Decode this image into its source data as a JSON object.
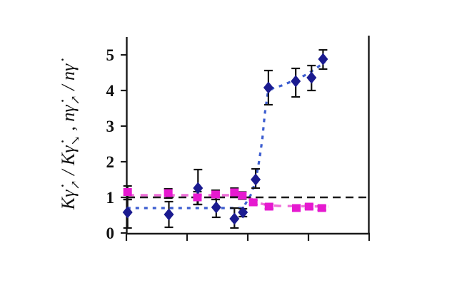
{
  "figure": {
    "background": "#ffffff",
    "axis_color": "#1a1a1a"
  },
  "chart_data": {
    "type": "scatter",
    "title": "",
    "xlabel": "",
    "ylabel": "Kγ̇↗ / Kγ̇↘ ,  nγ̇↗ / nγ̇",
    "ylabel_parts": [
      {
        "t": "K"
      },
      {
        "t": "γ̇"
      },
      {
        "t": "↗",
        "sub": true
      },
      {
        "t": " / "
      },
      {
        "t": "K"
      },
      {
        "t": "γ̇"
      },
      {
        "t": "↘",
        "sub": true
      },
      {
        "t": " ,  "
      },
      {
        "t": "n"
      },
      {
        "t": "γ̇"
      },
      {
        "t": "↗",
        "sub": true
      },
      {
        "t": " / "
      },
      {
        "t": "n"
      },
      {
        "t": "γ̇"
      }
    ],
    "x_axis": {
      "min": 0,
      "max": 4,
      "ticks": [
        0,
        1,
        2,
        3,
        4
      ],
      "tick_labels": [],
      "labels_visible": false
    },
    "y_axis": {
      "min": 0,
      "max": 5.5,
      "ticks": [
        0,
        1,
        2,
        3,
        4,
        5
      ],
      "tick_labels": [
        "0",
        "1",
        "2",
        "3",
        "4",
        "5"
      ]
    },
    "reference_line": {
      "y": 1.0,
      "color": "#1a1a1a",
      "style": "dashed"
    },
    "grid": false,
    "legend": "none",
    "series": [
      {
        "name": "diamond-series",
        "marker": "diamond",
        "color": "#1b1b90",
        "points": [
          {
            "x": 0.02,
            "y": 0.58,
            "lo": 0.14,
            "hi": 0.94
          },
          {
            "x": 0.7,
            "y": 0.52,
            "lo": 0.16,
            "hi": 0.88
          },
          {
            "x": 1.18,
            "y": 1.26,
            "lo": 0.8,
            "hi": 1.78
          },
          {
            "x": 1.48,
            "y": 0.72,
            "lo": 0.44,
            "hi": 1.0
          },
          {
            "x": 1.78,
            "y": 0.4,
            "lo": 0.14,
            "hi": 0.7
          },
          {
            "x": 1.92,
            "y": 0.58,
            "lo": 0.46,
            "hi": 0.68
          },
          {
            "x": 2.13,
            "y": 1.5,
            "lo": 1.26,
            "hi": 1.8
          },
          {
            "x": 2.34,
            "y": 4.08,
            "lo": 3.6,
            "hi": 4.56
          },
          {
            "x": 2.79,
            "y": 4.26,
            "lo": 3.82,
            "hi": 4.62
          },
          {
            "x": 3.05,
            "y": 4.36,
            "lo": 4.0,
            "hi": 4.7
          },
          {
            "x": 3.24,
            "y": 4.88,
            "lo": 4.6,
            "hi": 5.14
          }
        ],
        "trend": {
          "style": "dotted",
          "color": "#3d5ed0",
          "path": [
            [
              0.01,
              0.7
            ],
            [
              1.92,
              0.7
            ],
            [
              2.06,
              1.1
            ],
            [
              2.13,
              1.48
            ],
            [
              2.19,
              2.04
            ],
            [
              2.24,
              2.64
            ],
            [
              2.28,
              3.34
            ],
            [
              2.33,
              3.94
            ],
            [
              2.41,
              4.06
            ],
            [
              2.56,
              4.14
            ],
            [
              2.79,
              4.3
            ],
            [
              2.98,
              4.46
            ],
            [
              3.14,
              4.64
            ],
            [
              3.27,
              4.8
            ]
          ]
        }
      },
      {
        "name": "square-series",
        "marker": "square",
        "color": "#e619d0",
        "points": [
          {
            "x": 0.02,
            "y": 1.15,
            "lo": 0.94,
            "hi": 1.32
          },
          {
            "x": 0.69,
            "y": 1.12,
            "lo": 0.98,
            "hi": 1.24
          },
          {
            "x": 1.17,
            "y": 1.0,
            "lo": 0.8,
            "hi": 1.16
          },
          {
            "x": 1.47,
            "y": 1.08,
            "lo": 0.94,
            "hi": 1.2
          },
          {
            "x": 1.78,
            "y": 1.14,
            "lo": 1.02,
            "hi": 1.26
          },
          {
            "x": 1.91,
            "y": 1.05,
            "lo": 0.95,
            "hi": 1.15
          },
          {
            "x": 2.09,
            "y": 0.86,
            "lo": 0.8,
            "hi": 0.92
          },
          {
            "x": 2.35,
            "y": 0.74,
            "lo": 0.68,
            "hi": 0.8
          },
          {
            "x": 2.8,
            "y": 0.7,
            "lo": 0.64,
            "hi": 0.76
          },
          {
            "x": 3.01,
            "y": 0.74,
            "lo": 0.68,
            "hi": 0.8
          },
          {
            "x": 3.22,
            "y": 0.7,
            "lo": 0.64,
            "hi": 0.76
          }
        ],
        "trend": {
          "style": "dashed",
          "color": "#ef6fd9",
          "path": [
            [
              0.01,
              1.06
            ],
            [
              1.92,
              1.06
            ],
            [
              2.06,
              0.96
            ],
            [
              2.18,
              0.84
            ],
            [
              2.33,
              0.78
            ],
            [
              2.51,
              0.76
            ],
            [
              3.33,
              0.74
            ]
          ]
        }
      }
    ]
  }
}
